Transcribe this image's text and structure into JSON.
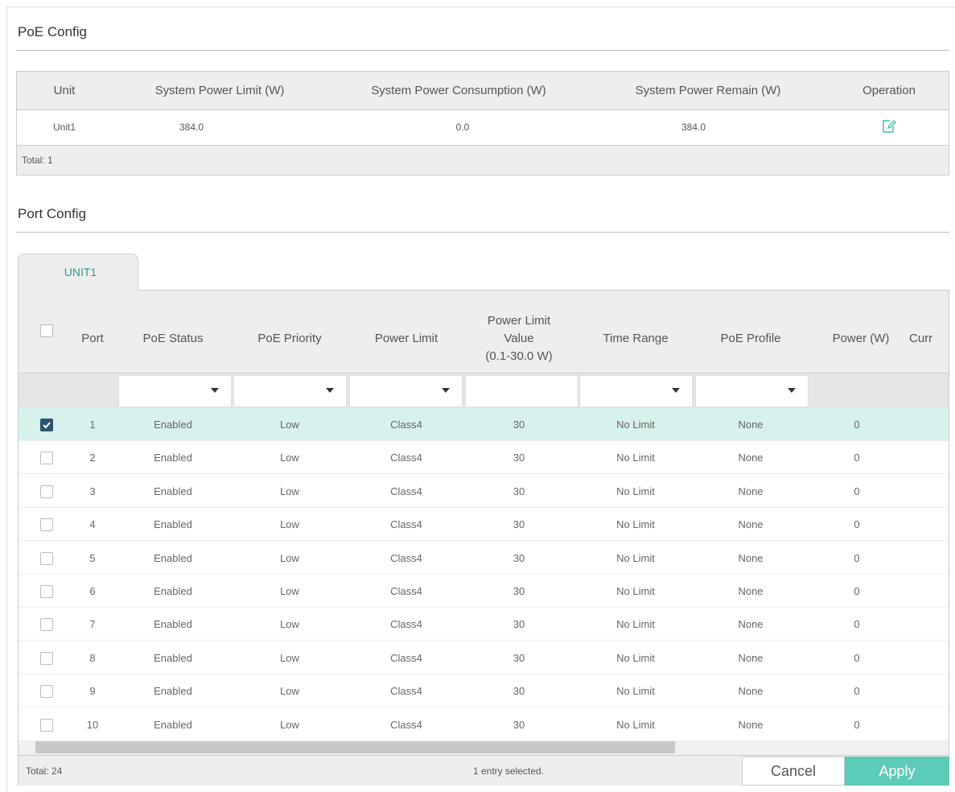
{
  "poe_config": {
    "title": "PoE Config",
    "headers": [
      "Unit",
      "System Power Limit (W)",
      "System Power Consumption (W)",
      "System Power Remain (W)",
      "Operation"
    ],
    "rows": [
      [
        "Unit1",
        "384.0",
        "0.0",
        "384.0"
      ]
    ],
    "footer": "Total: 1"
  },
  "port_config": {
    "title": "Port Config",
    "tab": "UNIT1",
    "headers": [
      [
        "Port"
      ],
      [
        "PoE Status"
      ],
      [
        "PoE Priority"
      ],
      [
        "Power Limit"
      ],
      [
        "Power Limit",
        "Value",
        "(0.1-30.0 W)"
      ],
      [
        "Time Range"
      ],
      [
        "PoE Profile"
      ],
      [
        "Power (W)"
      ],
      [
        "Curr"
      ]
    ],
    "rows": [
      {
        "checked": true,
        "cells": [
          1,
          "Enabled",
          "Low",
          "Class4",
          30,
          "No Limit",
          "None",
          0
        ]
      },
      {
        "checked": false,
        "cells": [
          2,
          "Enabled",
          "Low",
          "Class4",
          30,
          "No Limit",
          "None",
          0
        ]
      },
      {
        "checked": false,
        "cells": [
          3,
          "Enabled",
          "Low",
          "Class4",
          30,
          "No Limit",
          "None",
          0
        ]
      },
      {
        "checked": false,
        "cells": [
          4,
          "Enabled",
          "Low",
          "Class4",
          30,
          "No Limit",
          "None",
          0
        ]
      },
      {
        "checked": false,
        "cells": [
          5,
          "Enabled",
          "Low",
          "Class4",
          30,
          "No Limit",
          "None",
          0
        ]
      },
      {
        "checked": false,
        "cells": [
          6,
          "Enabled",
          "Low",
          "Class4",
          30,
          "No Limit",
          "None",
          0
        ]
      },
      {
        "checked": false,
        "cells": [
          7,
          "Enabled",
          "Low",
          "Class4",
          30,
          "No Limit",
          "None",
          0
        ]
      },
      {
        "checked": false,
        "cells": [
          8,
          "Enabled",
          "Low",
          "Class4",
          30,
          "No Limit",
          "None",
          0
        ]
      },
      {
        "checked": false,
        "cells": [
          9,
          "Enabled",
          "Low",
          "Class4",
          30,
          "No Limit",
          "None",
          0
        ]
      },
      {
        "checked": false,
        "cells": [
          10,
          "Enabled",
          "Low",
          "Class4",
          30,
          "No Limit",
          "None",
          0
        ]
      }
    ],
    "footer_total": "Total: 24",
    "footer_status": "1 entry selected.",
    "cancel": "Cancel",
    "apply": "Apply"
  }
}
